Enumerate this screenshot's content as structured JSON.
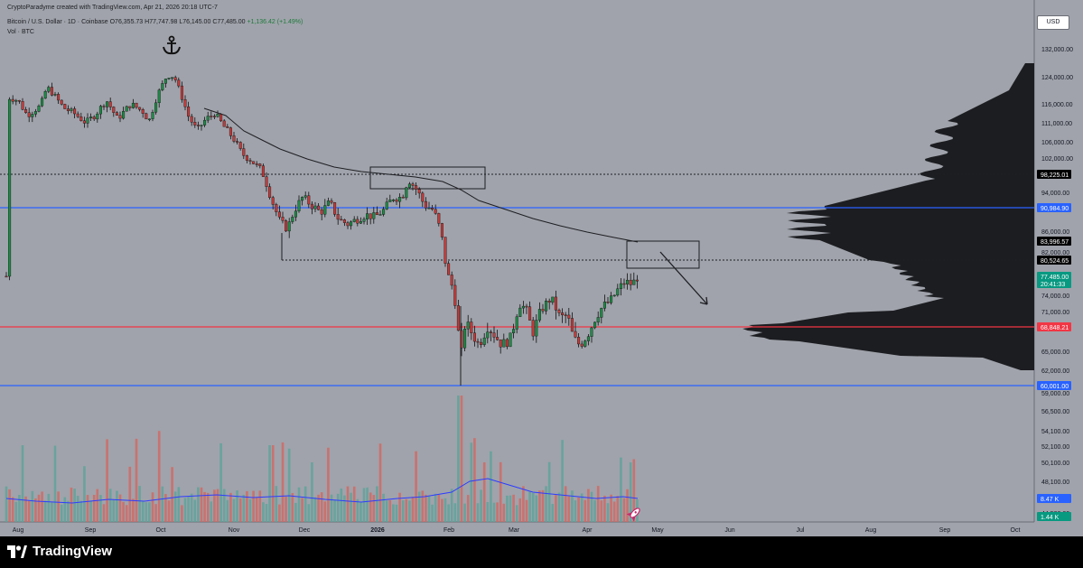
{
  "header": {
    "attribution": "CryptoParadyme created with TradingView.com, Apr 21, 2026 20:18 UTC-7",
    "symbol": "Bitcoin / U.S. Dollar · 1D · Coinbase",
    "open": "O76,355.73",
    "high": "H77,747.98",
    "low": "L76,145.00",
    "close": "C77,485.00",
    "change": "+1,136.42 (+1.49%)",
    "volume_label": "Vol · BTC"
  },
  "currency_button": "USD",
  "price_axis": {
    "ticks": [
      "132,000.00",
      "124,000.00",
      "116,000.00",
      "111,000.00",
      "106,000.00",
      "102,000.00",
      "94,000.00",
      "86,000.00",
      "82,000.00",
      "74,000.00",
      "71,000.00",
      "65,000.00",
      "62,000.00",
      "59,000.00",
      "56,500.00",
      "54,100.00",
      "52,100.00",
      "50,100.00",
      "48,100.00",
      "44,500.00"
    ],
    "labels": [
      {
        "text": "98,225.01",
        "bg": "#000000",
        "fg": "#ffffff"
      },
      {
        "text": "90,984.90",
        "bg": "#2962ff",
        "fg": "#ffffff"
      },
      {
        "text": "83,996.57",
        "bg": "#000000",
        "fg": "#ffffff"
      },
      {
        "text": "80,524.65",
        "bg": "#000000",
        "fg": "#ffffff"
      },
      {
        "text": "77,485.00",
        "bg": "#089981",
        "fg": "#ffffff"
      },
      {
        "text": "20:41:33",
        "bg": "#089981",
        "fg": "#ffffff"
      },
      {
        "text": "68,848.21",
        "bg": "#f23645",
        "fg": "#ffffff"
      },
      {
        "text": "60,001.00",
        "bg": "#2962ff",
        "fg": "#ffffff"
      },
      {
        "text": "8.47 K",
        "bg": "#2962ff",
        "fg": "#ffffff"
      },
      {
        "text": "1.44 K",
        "bg": "#089981",
        "fg": "#ffffff"
      }
    ]
  },
  "time_axis": {
    "labels": [
      "Aug",
      "Sep",
      "Oct",
      "Nov",
      "Dec",
      "2026",
      "Feb",
      "Mar",
      "Apr",
      "May",
      "Jun",
      "Jul",
      "Aug",
      "Sep",
      "Oct"
    ]
  },
  "levels": {
    "dotted_high": 98225.01,
    "blue_resistance": 90984.9,
    "box_level": 80524.65,
    "red_support": 68848.21,
    "blue_support": 60001.0
  },
  "icons": {
    "anchor": "anchor-icon",
    "rocket": "rocket-icon",
    "arrow": "down-arrow-icon"
  },
  "colors": {
    "up": "#26a69a",
    "down": "#ef5350",
    "background": "#a0a3ab",
    "blue_line": "#2962ff",
    "red_line": "#f23645"
  },
  "brand": "TradingView"
}
